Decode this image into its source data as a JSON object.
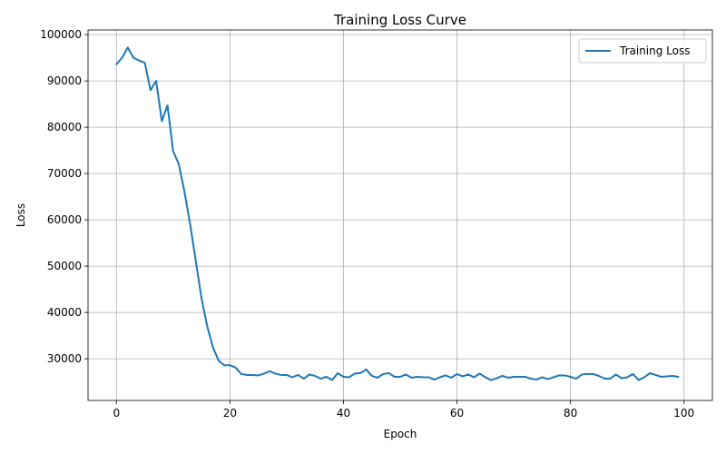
{
  "chart_data": {
    "type": "line",
    "title": "Training Loss Curve",
    "xlabel": "Epoch",
    "ylabel": "Loss",
    "xlim": [
      -5,
      105
    ],
    "ylim": [
      21000,
      101000
    ],
    "x_ticks": [
      0,
      20,
      40,
      60,
      80,
      100
    ],
    "y_ticks": [
      30000,
      40000,
      50000,
      60000,
      70000,
      80000,
      90000,
      100000
    ],
    "grid": true,
    "legend_position": "top-right",
    "series": [
      {
        "name": "Training Loss",
        "color": "#1f77b4",
        "x": [
          0,
          1,
          2,
          3,
          4,
          5,
          6,
          7,
          8,
          9,
          10,
          11,
          12,
          13,
          14,
          15,
          16,
          17,
          18,
          19,
          20,
          21,
          22,
          23,
          24,
          25,
          26,
          27,
          28,
          29,
          30,
          31,
          32,
          33,
          34,
          35,
          36,
          37,
          38,
          39,
          40,
          41,
          42,
          43,
          44,
          45,
          46,
          47,
          48,
          49,
          50,
          51,
          52,
          53,
          54,
          55,
          56,
          57,
          58,
          59,
          60,
          61,
          62,
          63,
          64,
          65,
          66,
          67,
          68,
          69,
          70,
          71,
          72,
          73,
          74,
          75,
          76,
          77,
          78,
          79,
          80,
          81,
          82,
          83,
          84,
          85,
          86,
          87,
          88,
          89,
          90,
          91,
          92,
          93,
          94,
          95,
          96,
          97,
          98,
          99
        ],
        "values": [
          93600,
          95000,
          97200,
          95000,
          94400,
          93900,
          88000,
          90000,
          81300,
          84700,
          74800,
          72000,
          66000,
          59000,
          51000,
          43000,
          37000,
          32500,
          29600,
          28600,
          28600,
          28100,
          26700,
          26500,
          26500,
          26400,
          26800,
          27300,
          26800,
          26500,
          26500,
          26000,
          26500,
          25700,
          26600,
          26300,
          25700,
          26100,
          25400,
          26900,
          26100,
          26000,
          26800,
          26900,
          27700,
          26300,
          25900,
          26700,
          26900,
          26100,
          26100,
          26600,
          25900,
          26100,
          26000,
          26000,
          25500,
          26000,
          26400,
          25900,
          26700,
          26200,
          26600,
          26000,
          26800,
          26000,
          25400,
          25800,
          26300,
          25900,
          26100,
          26100,
          26100,
          25700,
          25500,
          26000,
          25600,
          26000,
          26400,
          26400,
          26100,
          25700,
          26600,
          26700,
          26700,
          26300,
          25700,
          25700,
          26600,
          25800,
          26000,
          26700,
          25400,
          26000,
          26900,
          26500,
          26100,
          26200,
          26300,
          26100
        ]
      }
    ]
  }
}
